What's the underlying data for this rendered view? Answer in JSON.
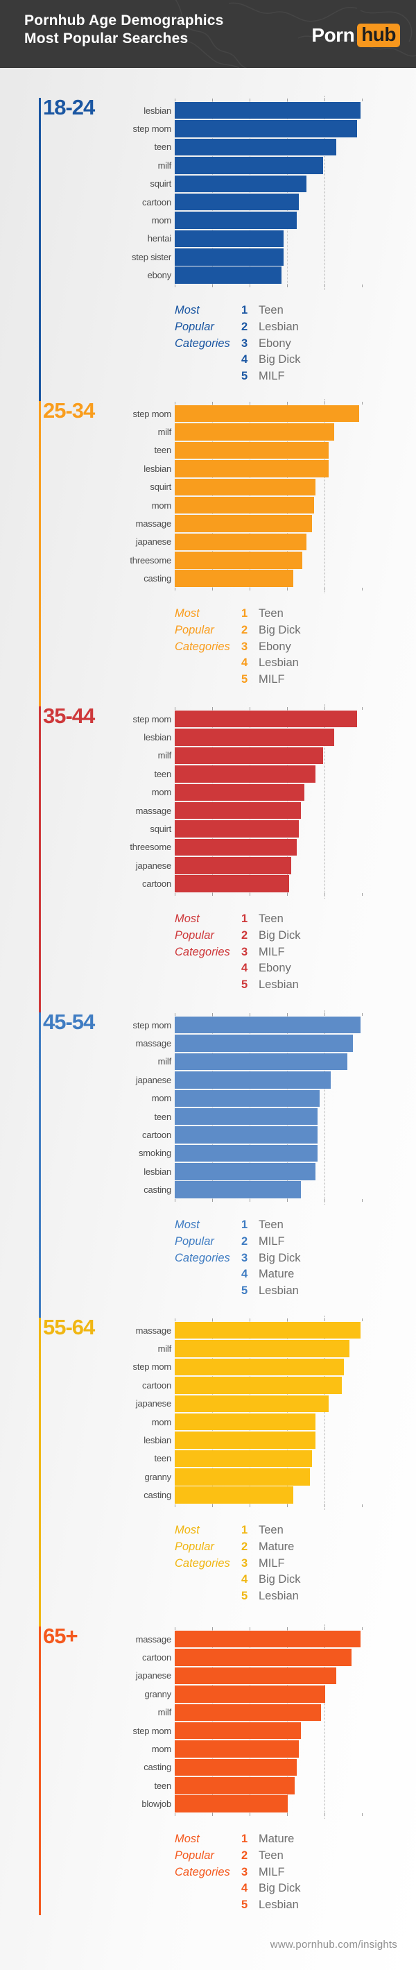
{
  "header": {
    "title_line1": "Pornhub Age Demographics",
    "title_line2": "Most Popular Searches",
    "logo": {
      "porn": "Porn",
      "hub": "hub",
      "hub_bg": "#f7971d"
    }
  },
  "categories_label_lines": [
    "Most",
    "Popular",
    "Categories"
  ],
  "footer": {
    "url": "www.pornhub.com/insights"
  },
  "chart_data": [
    {
      "type": "bar",
      "title": "18-24",
      "accent": "#1a56a2",
      "heading_color": "#1a56a2",
      "xlabel": "relative search volume (axis unlabeled)",
      "xlim": [
        0,
        100
      ],
      "grid": "dotted vertical",
      "categories": [
        "lesbian",
        "step mom",
        "teen",
        "milf",
        "squirt",
        "cartoon",
        "mom",
        "hentai",
        "step sister",
        "ebony"
      ],
      "values": [
        99,
        97,
        86,
        79,
        70,
        66,
        65,
        58,
        58,
        57
      ],
      "top_categories_label": "Most Popular Categories",
      "top_categories": [
        "Teen",
        "Lesbian",
        "Ebony",
        "Big Dick",
        "MILF"
      ]
    },
    {
      "type": "bar",
      "title": "25-34",
      "accent": "#f99d1d",
      "heading_color": "#f99d1d",
      "xlabel": "relative search volume (axis unlabeled)",
      "xlim": [
        0,
        100
      ],
      "grid": "dotted vertical",
      "categories": [
        "step mom",
        "milf",
        "teen",
        "lesbian",
        "squirt",
        "mom",
        "massage",
        "japanese",
        "threesome",
        "casting"
      ],
      "values": [
        98,
        85,
        82,
        82,
        75,
        74,
        73,
        70,
        68,
        63
      ],
      "top_categories_label": "Most Popular Categories",
      "top_categories": [
        "Teen",
        "Big Dick",
        "Ebony",
        "Lesbian",
        "MILF"
      ]
    },
    {
      "type": "bar",
      "title": "35-44",
      "accent": "#ce383a",
      "heading_color": "#ce383a",
      "xlabel": "relative search volume (axis unlabeled)",
      "xlim": [
        0,
        100
      ],
      "grid": "dotted vertical",
      "categories": [
        "step mom",
        "lesbian",
        "milf",
        "teen",
        "mom",
        "massage",
        "squirt",
        "threesome",
        "japanese",
        "cartoon"
      ],
      "values": [
        97,
        85,
        79,
        75,
        69,
        67,
        66,
        65,
        62,
        61
      ],
      "top_categories_label": "Most Popular Categories",
      "top_categories": [
        "Teen",
        "Big Dick",
        "MILF",
        "Ebony",
        "Lesbian"
      ]
    },
    {
      "type": "bar",
      "title": "45-54",
      "accent": "#5d8cc8",
      "heading_color": "#3f7cc2",
      "xlabel": "relative search volume (axis unlabeled)",
      "xlim": [
        0,
        100
      ],
      "grid": "dotted vertical",
      "categories": [
        "step mom",
        "massage",
        "milf",
        "japanese",
        "mom",
        "teen",
        "cartoon",
        "smoking",
        "lesbian",
        "casting"
      ],
      "values": [
        99,
        95,
        92,
        83,
        77,
        76,
        76,
        76,
        75,
        67
      ],
      "top_categories_label": "Most Popular Categories",
      "top_categories": [
        "Teen",
        "MILF",
        "Big Dick",
        "Mature",
        "Lesbian"
      ]
    },
    {
      "type": "bar",
      "title": "55-64",
      "accent": "#fcc013",
      "heading_color": "#f0b612",
      "xlabel": "relative search volume (axis unlabeled)",
      "xlim": [
        0,
        100
      ],
      "grid": "dotted vertical",
      "categories": [
        "massage",
        "milf",
        "step mom",
        "cartoon",
        "japanese",
        "mom",
        "lesbian",
        "teen",
        "granny",
        "casting"
      ],
      "values": [
        99,
        93,
        90,
        89,
        82,
        75,
        75,
        73,
        72,
        63
      ],
      "top_categories_label": "Most Popular Categories",
      "top_categories": [
        "Teen",
        "Mature",
        "MILF",
        "Big Dick",
        "Lesbian"
      ]
    },
    {
      "type": "bar",
      "title": "65+",
      "accent": "#f4591e",
      "heading_color": "#f4591e",
      "xlabel": "relative search volume (axis unlabeled)",
      "xlim": [
        0,
        100
      ],
      "grid": "dotted vertical",
      "categories": [
        "massage",
        "cartoon",
        "japanese",
        "granny",
        "milf",
        "step mom",
        "mom",
        "casting",
        "teen",
        "blowjob"
      ],
      "values": [
        99,
        94,
        86,
        80,
        78,
        67,
        66,
        65,
        64,
        60
      ],
      "top_categories_label": "Most Popular Categories",
      "top_categories": [
        "Mature",
        "Teen",
        "MILF",
        "Big Dick",
        "Lesbian"
      ]
    }
  ]
}
